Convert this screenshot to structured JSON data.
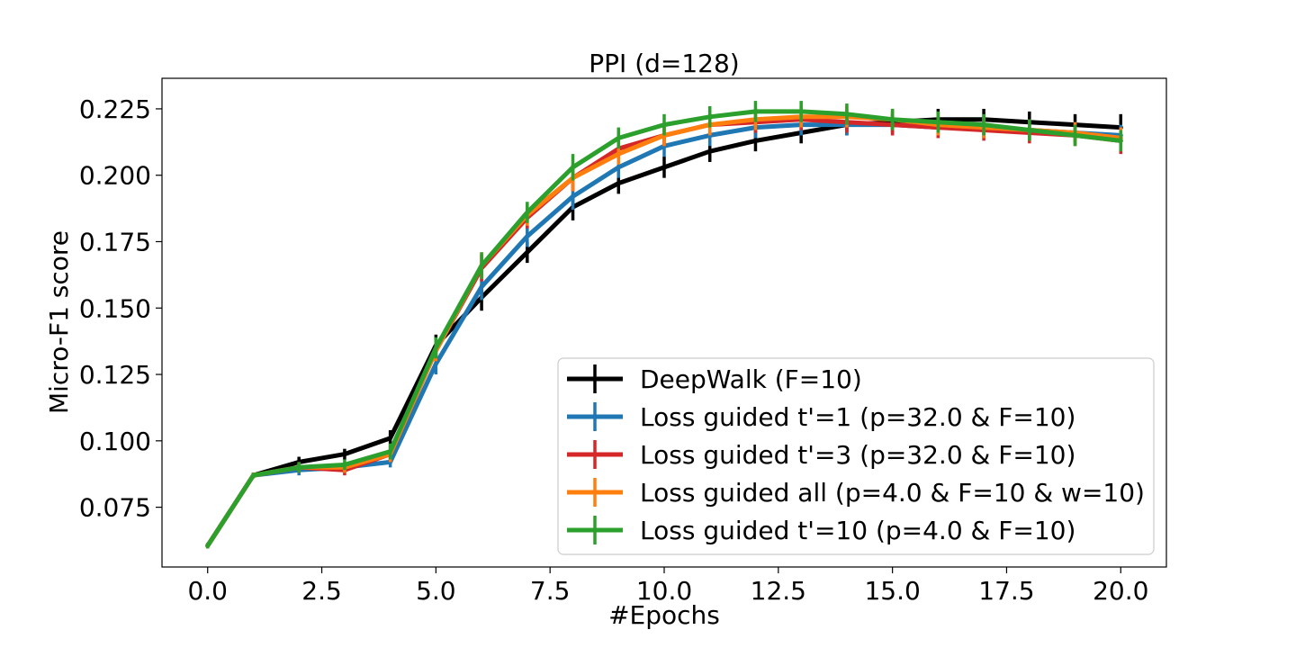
{
  "chart_data": {
    "type": "line",
    "title": "PPI (d=128)",
    "xlabel": "#Epochs",
    "ylabel": "Micro-F1 score",
    "xlim": [
      -1.0,
      21.0
    ],
    "ylim": [
      0.0525,
      0.2365
    ],
    "xticks": [
      "0.0",
      "2.5",
      "5.0",
      "7.5",
      "10.0",
      "12.5",
      "15.0",
      "17.5",
      "20.0"
    ],
    "yticks": [
      "0.075",
      "0.100",
      "0.125",
      "0.150",
      "0.175",
      "0.200",
      "0.225"
    ],
    "grid": false,
    "legend_position": "lower-right",
    "x": [
      0,
      1,
      2,
      3,
      4,
      5,
      6,
      7,
      8,
      9,
      10,
      11,
      12,
      13,
      14,
      15,
      16,
      17,
      18,
      19,
      20
    ],
    "series": [
      {
        "name": "DeepWalk (F=10)",
        "color": "#000000",
        "values": [
          0.0605,
          0.087,
          0.092,
          0.095,
          0.101,
          0.136,
          0.154,
          0.171,
          0.188,
          0.197,
          0.203,
          0.209,
          0.213,
          0.216,
          0.219,
          0.22,
          0.221,
          0.221,
          0.22,
          0.219,
          0.218
        ],
        "errors": [
          0.001,
          0.001,
          0.002,
          0.002,
          0.003,
          0.004,
          0.005,
          0.004,
          0.005,
          0.004,
          0.004,
          0.004,
          0.004,
          0.004,
          0.004,
          0.004,
          0.004,
          0.004,
          0.004,
          0.004,
          0.005
        ]
      },
      {
        "name": "Loss guided  t'=1  (p=32.0 & F=10)",
        "color": "#1f77b4",
        "values": [
          0.0605,
          0.087,
          0.089,
          0.09,
          0.092,
          0.129,
          0.158,
          0.177,
          0.192,
          0.203,
          0.211,
          0.215,
          0.218,
          0.219,
          0.219,
          0.219,
          0.218,
          0.218,
          0.217,
          0.216,
          0.215
        ],
        "errors": [
          0.001,
          0.001,
          0.002,
          0.002,
          0.002,
          0.004,
          0.005,
          0.004,
          0.005,
          0.004,
          0.004,
          0.004,
          0.004,
          0.004,
          0.004,
          0.004,
          0.004,
          0.004,
          0.004,
          0.004,
          0.004
        ]
      },
      {
        "name": "Loss guided  t'=3  (p=32.0 & F=10)",
        "color": "#d62728",
        "values": [
          0.0605,
          0.087,
          0.09,
          0.089,
          0.095,
          0.134,
          0.165,
          0.184,
          0.199,
          0.21,
          0.215,
          0.219,
          0.22,
          0.221,
          0.22,
          0.219,
          0.218,
          0.217,
          0.216,
          0.215,
          0.213
        ],
        "errors": [
          0.001,
          0.001,
          0.002,
          0.002,
          0.003,
          0.004,
          0.005,
          0.004,
          0.005,
          0.004,
          0.004,
          0.004,
          0.004,
          0.004,
          0.004,
          0.004,
          0.004,
          0.004,
          0.004,
          0.004,
          0.005
        ]
      },
      {
        "name": "Loss guided all (p=4.0 & F=10 & w=10)",
        "color": "#ff7f0e",
        "values": [
          0.0605,
          0.087,
          0.09,
          0.09,
          0.095,
          0.134,
          0.166,
          0.185,
          0.199,
          0.208,
          0.215,
          0.219,
          0.221,
          0.222,
          0.222,
          0.221,
          0.219,
          0.218,
          0.217,
          0.216,
          0.214
        ],
        "errors": [
          0.001,
          0.001,
          0.002,
          0.002,
          0.003,
          0.004,
          0.005,
          0.004,
          0.005,
          0.004,
          0.004,
          0.004,
          0.004,
          0.004,
          0.004,
          0.004,
          0.004,
          0.004,
          0.004,
          0.004,
          0.004
        ]
      },
      {
        "name": "Loss guided  t'=10  (p=4.0 & F=10)",
        "color": "#2ca02c",
        "values": [
          0.0605,
          0.087,
          0.09,
          0.091,
          0.096,
          0.135,
          0.166,
          0.186,
          0.203,
          0.214,
          0.219,
          0.222,
          0.224,
          0.224,
          0.223,
          0.221,
          0.22,
          0.219,
          0.217,
          0.215,
          0.213
        ],
        "errors": [
          0.001,
          0.001,
          0.002,
          0.002,
          0.003,
          0.004,
          0.005,
          0.004,
          0.005,
          0.004,
          0.004,
          0.004,
          0.004,
          0.004,
          0.004,
          0.004,
          0.004,
          0.004,
          0.004,
          0.004,
          0.004
        ]
      }
    ]
  }
}
